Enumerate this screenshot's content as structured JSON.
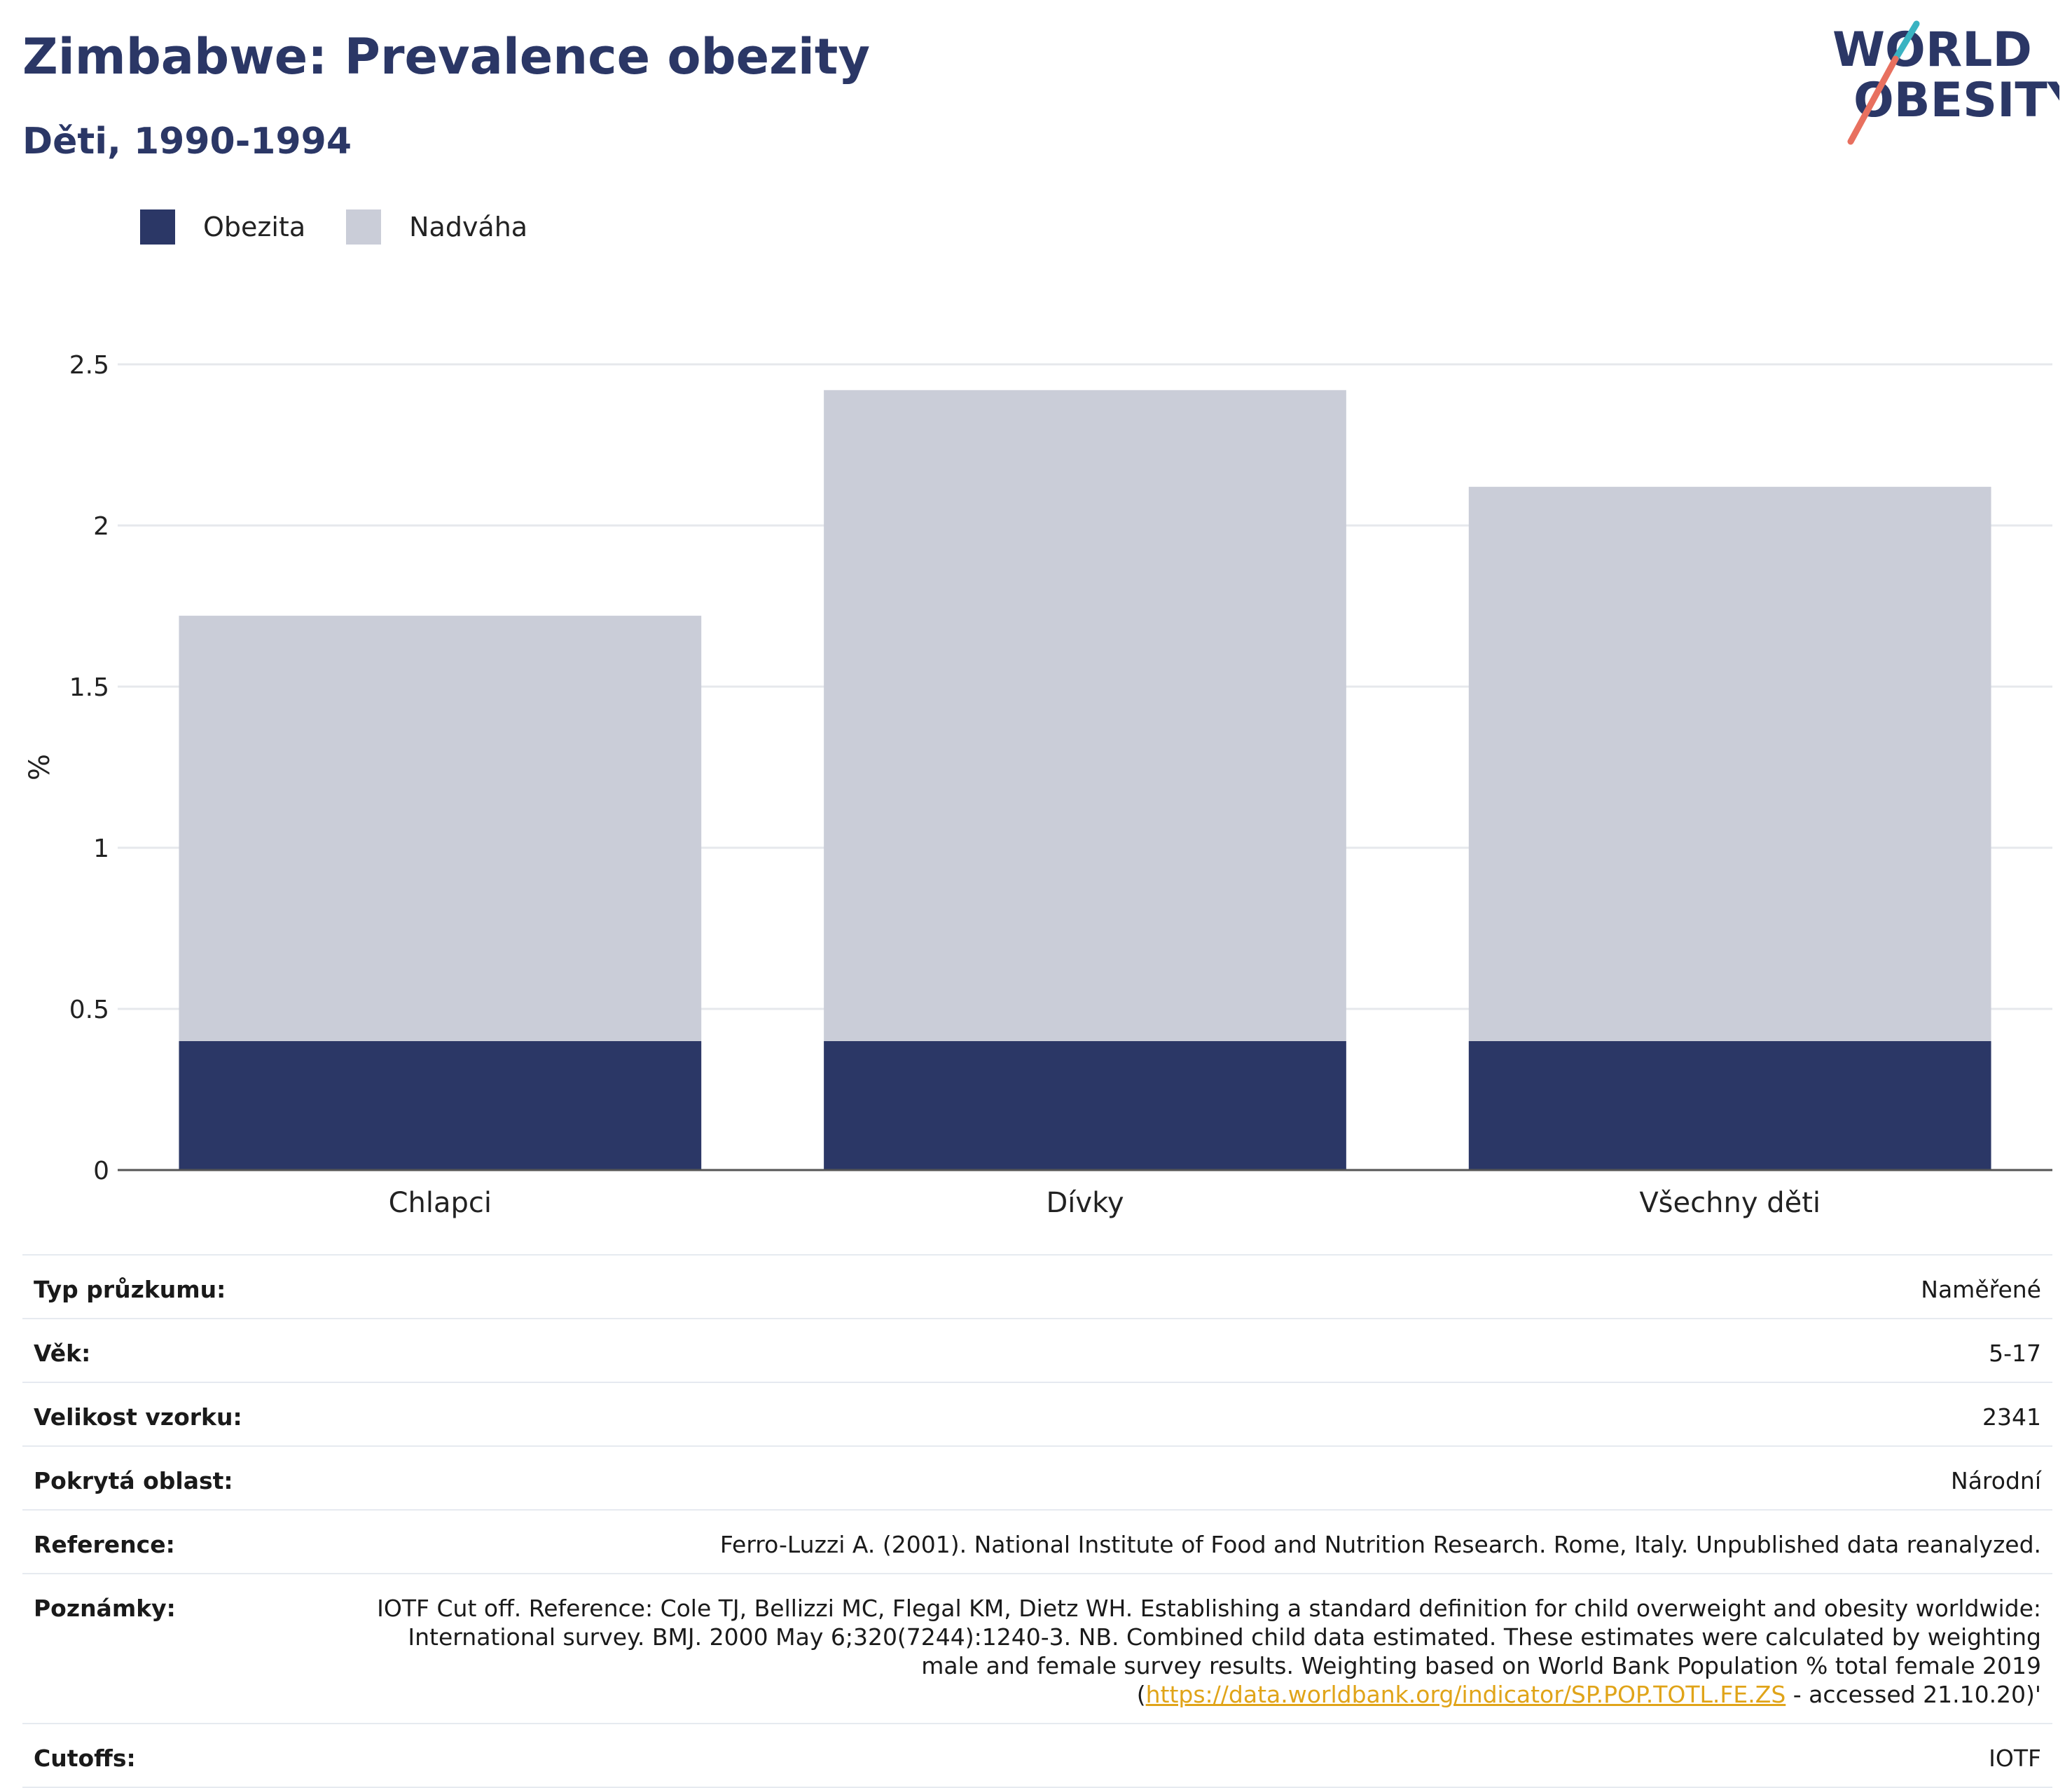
{
  "header": {
    "title": "Zimbabwe: Prevalence obezity",
    "subtitle": "Děti, 1990-1994"
  },
  "logo": {
    "line1": "WORLD",
    "line2": "OBESITY",
    "colors": {
      "text": "#2b3766",
      "slash_teal": "#3ab3c2",
      "slash_coral": "#e8705f"
    }
  },
  "colors": {
    "obesity": "#2b3766",
    "overweight": "#cacdd8",
    "grid": "#e6e8ec",
    "axis": "#555555"
  },
  "chart_data": {
    "type": "bar",
    "stacked": true,
    "categories": [
      "Chlapci",
      "Dívky",
      "Všechny děti"
    ],
    "series": [
      {
        "name": "Obezita",
        "values": [
          0.4,
          0.4,
          0.4
        ],
        "color": "#2b3766"
      },
      {
        "name": "Nadváha",
        "values": [
          1.32,
          2.02,
          1.72
        ],
        "color": "#cacdd8"
      }
    ],
    "ylabel": "%",
    "ylim": [
      0,
      2.5
    ],
    "yticks": [
      0,
      0.5,
      1,
      1.5,
      2,
      2.5
    ],
    "ytick_labels": [
      "0",
      "0.5",
      "1",
      "1.5",
      "2",
      "2.5"
    ],
    "grid": true,
    "legend_position": "top-left"
  },
  "table": {
    "rows": [
      {
        "label": "Typ průzkumu:",
        "value": "Naměřené"
      },
      {
        "label": "Věk:",
        "value": "5-17"
      },
      {
        "label": "Velikost vzorku:",
        "value": "2341"
      },
      {
        "label": "Pokrytá oblast:",
        "value": "Národní"
      },
      {
        "label": "Reference:",
        "value": "Ferro-Luzzi A. (2001). National Institute of Food and Nutrition Research. Rome, Italy. Unpublished data reanalyzed."
      },
      {
        "label": "Poznámky:",
        "value": "IOTF Cut off. Reference: Cole TJ, Bellizzi MC, Flegal KM, Dietz WH. Establishing a standard definition for child overweight and obesity worldwide: International survey. BMJ. 2000 May 6;320(7244):1240-3. NB. Combined child data estimated. These estimates were calculated by weighting male and female survey results. Weighting based on World Bank Population % total female 2019 (",
        "link": "https://data.worldbank.org/indicator/SP.POP.TOTL.FE.ZS",
        "suffix": " - accessed 21.10.20)'"
      },
      {
        "label": "Cutoffs:",
        "value": "IOTF"
      }
    ]
  }
}
